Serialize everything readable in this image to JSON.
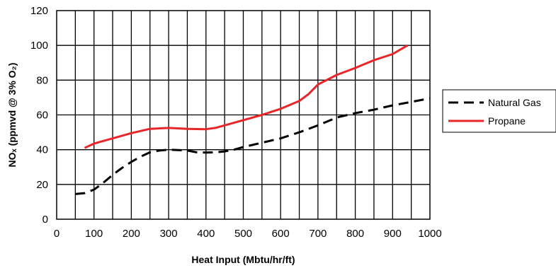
{
  "chart_data": {
    "type": "line",
    "xlabel": "Heat Input (Mbtu/hr/ft)",
    "ylabel": "NOₓ (ppmvd @ 3% O₂)",
    "xlim": [
      0,
      1000
    ],
    "ylim": [
      0,
      120
    ],
    "x_ticks": [
      0,
      100,
      200,
      300,
      400,
      500,
      600,
      700,
      800,
      900,
      1000
    ],
    "y_ticks": [
      0,
      20,
      40,
      60,
      80,
      100,
      120
    ],
    "x_tick_labels": [
      "0",
      "100",
      "200",
      "300",
      "400",
      "500",
      "600",
      "700",
      "800",
      "900",
      "1000"
    ],
    "y_tick_labels": [
      "0",
      "20",
      "40",
      "60",
      "80",
      "100",
      "120"
    ],
    "x_minor_grid_step": 50,
    "y_grid_step": 20,
    "grid": true,
    "legend_position": "right",
    "series": [
      {
        "name": "Natural Gas",
        "color": "#000000",
        "style": "dashed",
        "points": [
          [
            50,
            14.5
          ],
          [
            75,
            15
          ],
          [
            100,
            17
          ],
          [
            125,
            21
          ],
          [
            150,
            25.5
          ],
          [
            175,
            29.5
          ],
          [
            200,
            33
          ],
          [
            225,
            36
          ],
          [
            250,
            38.5
          ],
          [
            275,
            39.5
          ],
          [
            300,
            40
          ],
          [
            325,
            39.8
          ],
          [
            350,
            39.5
          ],
          [
            375,
            38.5
          ],
          [
            400,
            38.3
          ],
          [
            425,
            38.5
          ],
          [
            450,
            39
          ],
          [
            475,
            40
          ],
          [
            500,
            41.5
          ],
          [
            550,
            44
          ],
          [
            600,
            46.5
          ],
          [
            650,
            50
          ],
          [
            700,
            54
          ],
          [
            750,
            58.5
          ],
          [
            800,
            61
          ],
          [
            850,
            63
          ],
          [
            900,
            65.5
          ],
          [
            950,
            67.5
          ],
          [
            1000,
            69.5
          ]
        ]
      },
      {
        "name": "Propane",
        "color": "#e8262a",
        "style": "solid",
        "points": [
          [
            75,
            41
          ],
          [
            100,
            43.5
          ],
          [
            150,
            46.5
          ],
          [
            200,
            49.5
          ],
          [
            250,
            52
          ],
          [
            300,
            52.5
          ],
          [
            350,
            52
          ],
          [
            400,
            51.8
          ],
          [
            425,
            52.5
          ],
          [
            450,
            54
          ],
          [
            500,
            57
          ],
          [
            550,
            60
          ],
          [
            600,
            63.5
          ],
          [
            650,
            68
          ],
          [
            675,
            72
          ],
          [
            700,
            77.5
          ],
          [
            750,
            83
          ],
          [
            800,
            87
          ],
          [
            850,
            91.5
          ],
          [
            900,
            95
          ],
          [
            940,
            100
          ]
        ]
      }
    ]
  }
}
